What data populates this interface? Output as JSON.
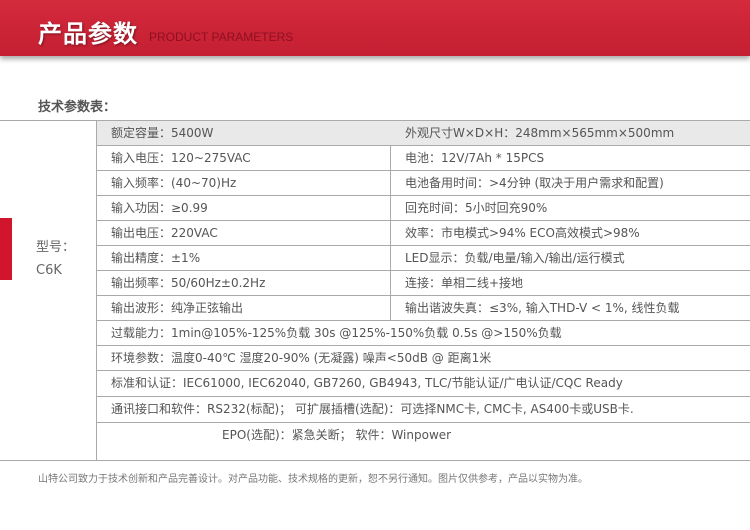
{
  "header": {
    "title_cn": "产品参数",
    "title_en": "PRODUCT PARAMETERS"
  },
  "subtitle": "技术参数表：",
  "model": {
    "label": "型号：",
    "value": "C6K"
  },
  "rows_split": [
    [
      "额定容量：5400W",
      "外观尺寸W×D×H：248mm×565mm×500mm"
    ],
    [
      "输入电压：120~275VAC",
      "电池：12V/7Ah * 15PCS"
    ],
    [
      "输入频率：(40~70)Hz",
      "电池备用时间：>4分钟 (取决于用户需求和配置)"
    ],
    [
      "输入功因：≥0.99",
      "回充时间：5小时回充90%"
    ],
    [
      "输出电压：220VAC",
      "效率：市电模式>94%    ECO高效模式>98%"
    ],
    [
      "输出精度：±1%",
      "LED显示：负载/电量/输入/输出/运行模式"
    ],
    [
      "输出频率：50/60Hz±0.2Hz",
      "连接：单相二线+接地"
    ],
    [
      "输出波形：纯净正弦输出",
      "输出谐波失真：≤3%, 输入THD-V < 1%, 线性负载"
    ]
  ],
  "rows_full": [
    "过载能力：1min@105%-125%负载    30s @125%-150%负载    0.5s @>150%负载",
    "环境参数：温度0-40℃   湿度20-90% (无凝露)   噪声<50dB @ 距离1米",
    "标准和认证：IEC61000, IEC62040, GB7260, GB4943, TLC/节能认证/广电认证/CQC Ready",
    "通讯接口和软件：RS232(标配)； 可扩展插槽(选配)：可选择NMC卡, CMC卡, AS400卡或USB卡.",
    "EPO(选配)：紧急关断；  软件：Winpower"
  ],
  "footer": "山特公司致力于技术创新和产品完善设计。对产品功能、技术规格的更新，恕不另行通知。图片仅供参考，产品以实物为准。",
  "colors": {
    "brand_red": "#c41f32",
    "accent_bar": "#d0152c"
  }
}
